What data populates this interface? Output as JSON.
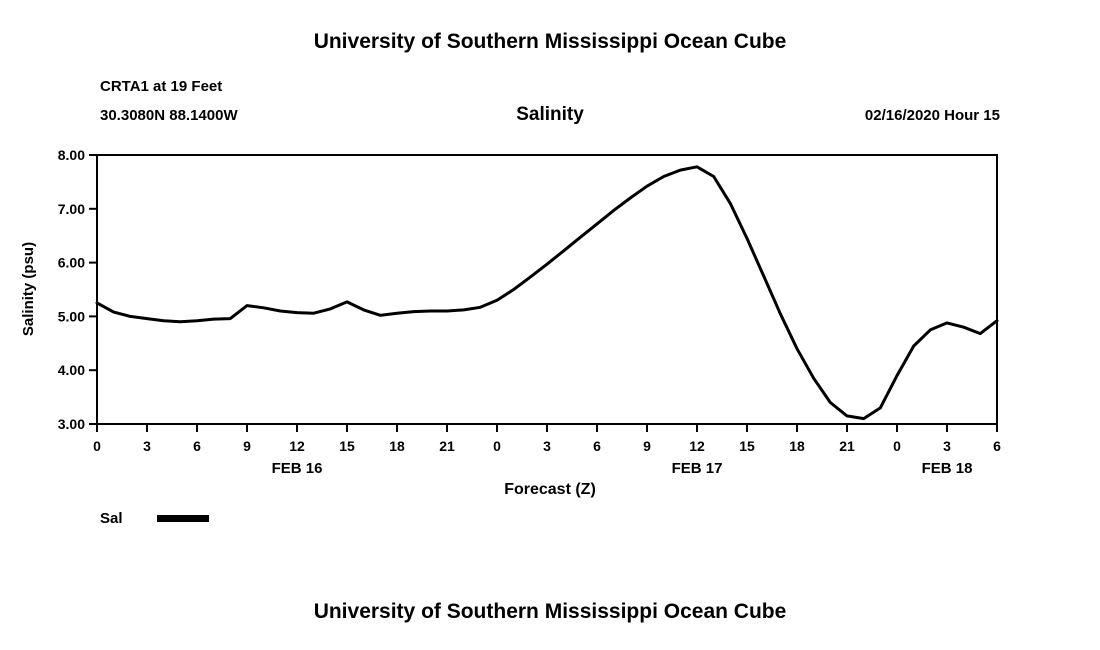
{
  "header": {
    "top_title": "University of Southern Mississippi Ocean Cube",
    "station_line1": "CRTA1 at 19 Feet",
    "station_line2": "30.3080N 88.1400W",
    "chart_title": "Salinity",
    "datetime": "02/16/2020 Hour 15"
  },
  "footer": {
    "bottom_title": "University of Southern Mississippi Ocean Cube"
  },
  "legend": {
    "label": "Sal",
    "color": "#000000"
  },
  "chart_data": {
    "type": "line",
    "title": "Salinity",
    "xlabel": "Forecast (Z)",
    "ylabel": "Salinity (psu)",
    "ylim": [
      3.0,
      8.0
    ],
    "yticks": [
      3.0,
      4.0,
      5.0,
      6.0,
      7.0,
      8.0
    ],
    "xlim_hours": [
      0,
      54
    ],
    "xtick_interval_hours": 3,
    "xtick_labels": [
      "0",
      "3",
      "6",
      "9",
      "12",
      "15",
      "18",
      "21",
      "0",
      "3",
      "6",
      "9",
      "12",
      "15",
      "18",
      "21",
      "0",
      "3",
      "6"
    ],
    "date_labels": [
      {
        "label": "FEB 16",
        "hour": 12
      },
      {
        "label": "FEB 17",
        "hour": 36
      },
      {
        "label": "FEB 18",
        "hour": 51
      }
    ],
    "grid": false,
    "legend_position": "bottom-left",
    "frame_color": "#000000",
    "series": [
      {
        "name": "Sal",
        "color": "#000000",
        "x_hours": [
          0,
          1,
          2,
          3,
          4,
          5,
          6,
          7,
          8,
          9,
          10,
          11,
          12,
          13,
          14,
          15,
          16,
          17,
          18,
          19,
          20,
          21,
          22,
          23,
          24,
          25,
          26,
          27,
          28,
          29,
          30,
          31,
          32,
          33,
          34,
          35,
          36,
          37,
          38,
          39,
          40,
          41,
          42,
          43,
          44,
          45,
          46,
          47,
          48,
          49,
          50,
          51,
          52,
          53,
          54
        ],
        "values": [
          5.25,
          5.08,
          5.0,
          4.96,
          4.92,
          4.9,
          4.92,
          4.95,
          4.96,
          5.2,
          5.16,
          5.1,
          5.07,
          5.06,
          5.14,
          5.27,
          5.12,
          5.02,
          5.06,
          5.09,
          5.1,
          5.1,
          5.12,
          5.17,
          5.3,
          5.5,
          5.73,
          5.97,
          6.22,
          6.47,
          6.72,
          6.97,
          7.2,
          7.42,
          7.6,
          7.72,
          7.78,
          7.6,
          7.1,
          6.45,
          5.75,
          5.05,
          4.4,
          3.85,
          3.4,
          3.15,
          3.1,
          3.3,
          3.9,
          4.45,
          4.75,
          4.88,
          4.8,
          4.68,
          4.92
        ]
      }
    ]
  }
}
